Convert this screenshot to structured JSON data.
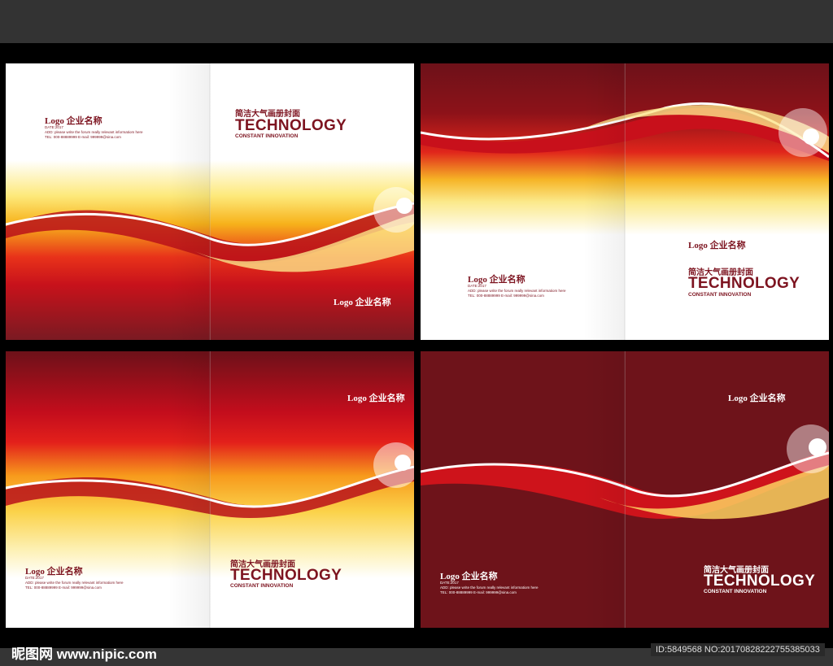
{
  "covers": {
    "company_logo": "Logo 企业名称",
    "date": "DATE:2017",
    "address": "ADD: please write the forum really relevant informatiom here",
    "contact": "TEL: 000-88889999    E-mail: 999999@sina.com",
    "subtitle_cn": "简洁大气画册封面",
    "title": "TECHNOLOGY",
    "tagline": "CONSTANT INNOVATION"
  },
  "colors": {
    "dark_red": "#6e131a",
    "red": "#e0251b",
    "yellow": "#f6b426"
  },
  "watermark": {
    "site": "昵图网 www.nipic.com",
    "id_text": "ID:5849568 NO:20170828222755385033"
  }
}
